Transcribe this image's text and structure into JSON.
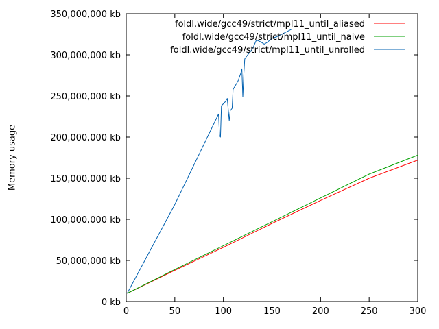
{
  "chart_data": {
    "type": "line",
    "title": "",
    "xlabel": "",
    "ylabel": "Memory usage",
    "xlim": [
      0,
      300
    ],
    "ylim": [
      0,
      350000000
    ],
    "x_ticks": [
      0,
      50,
      100,
      150,
      200,
      250,
      300
    ],
    "y_ticks": [
      0,
      50000000,
      100000000,
      150000000,
      200000000,
      250000000,
      300000000,
      350000000
    ],
    "y_tick_labels": [
      "0 kb",
      "50,000,000 kb",
      "100,000,000 kb",
      "150,000,000 kb",
      "200,000,000 kb",
      "250,000,000 kb",
      "300,000,000 kb",
      "350,000,000 kb"
    ],
    "grid": false,
    "legend_position": "top-right",
    "series": [
      {
        "name": "foldl.wide/gcc49/strict/mpl11_until_aliased",
        "color": "#ff0000",
        "points": [
          [
            1,
            10000000
          ],
          [
            50,
            38000000
          ],
          [
            100,
            66000000
          ],
          [
            150,
            95000000
          ],
          [
            200,
            123000000
          ],
          [
            250,
            150000000
          ],
          [
            300,
            172000000
          ]
        ]
      },
      {
        "name": "foldl.wide/gcc49/strict/mpl11_until_naive",
        "color": "#00a000",
        "points": [
          [
            1,
            10000000
          ],
          [
            50,
            39000000
          ],
          [
            100,
            68000000
          ],
          [
            150,
            97000000
          ],
          [
            200,
            126000000
          ],
          [
            250,
            155000000
          ],
          [
            300,
            178000000
          ]
        ]
      },
      {
        "name": "foldl.wide/gcc49/strict/mpl11_until_unrolled",
        "color": "#0060b0",
        "points": [
          [
            1,
            10000000
          ],
          [
            50,
            118000000
          ],
          [
            95,
            228000000
          ],
          [
            96,
            202000000
          ],
          [
            97,
            200000000
          ],
          [
            98,
            238000000
          ],
          [
            102,
            243000000
          ],
          [
            104,
            247000000
          ],
          [
            106,
            220000000
          ],
          [
            107,
            232000000
          ],
          [
            109,
            235000000
          ],
          [
            110,
            258000000
          ],
          [
            115,
            268000000
          ],
          [
            118,
            278000000
          ],
          [
            119,
            283000000
          ],
          [
            120,
            249000000
          ],
          [
            121,
            276000000
          ],
          [
            122,
            295000000
          ],
          [
            125,
            300000000
          ],
          [
            128,
            304000000
          ],
          [
            131,
            310000000
          ],
          [
            134,
            318000000
          ],
          [
            138,
            316000000
          ],
          [
            142,
            313000000
          ],
          [
            145,
            315000000
          ],
          [
            150,
            320000000
          ],
          [
            155,
            322000000
          ],
          [
            160,
            325000000
          ],
          [
            165,
            328000000
          ],
          [
            170,
            331000000
          ]
        ]
      }
    ]
  }
}
